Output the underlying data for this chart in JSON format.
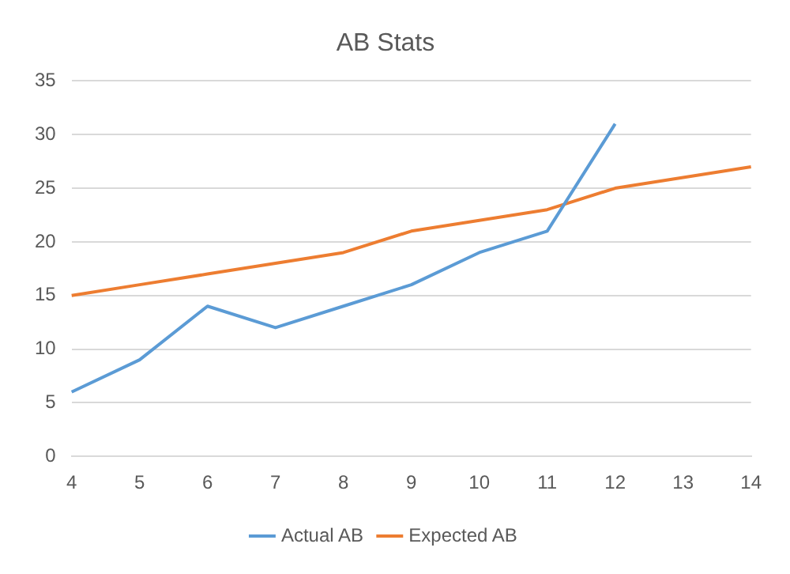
{
  "chart_data": {
    "type": "line",
    "title": "AB Stats",
    "categories": [
      "4",
      "5",
      "6",
      "7",
      "8",
      "9",
      "10",
      "11",
      "12",
      "13",
      "14"
    ],
    "series": [
      {
        "name": "Actual AB",
        "color": "#5b9bd5",
        "values": [
          6,
          9,
          14,
          12,
          14,
          16,
          19,
          21,
          31,
          null,
          null
        ]
      },
      {
        "name": "Expected AB",
        "color": "#ed7d31",
        "values": [
          15,
          16,
          17,
          18,
          19,
          21,
          22,
          23,
          25,
          26,
          27
        ]
      }
    ],
    "ylim": [
      0,
      35
    ],
    "yticks": [
      0,
      5,
      10,
      15,
      20,
      25,
      30,
      35
    ],
    "grid": "y",
    "legend": "bottom",
    "marker": "none",
    "line_style": "solid"
  }
}
